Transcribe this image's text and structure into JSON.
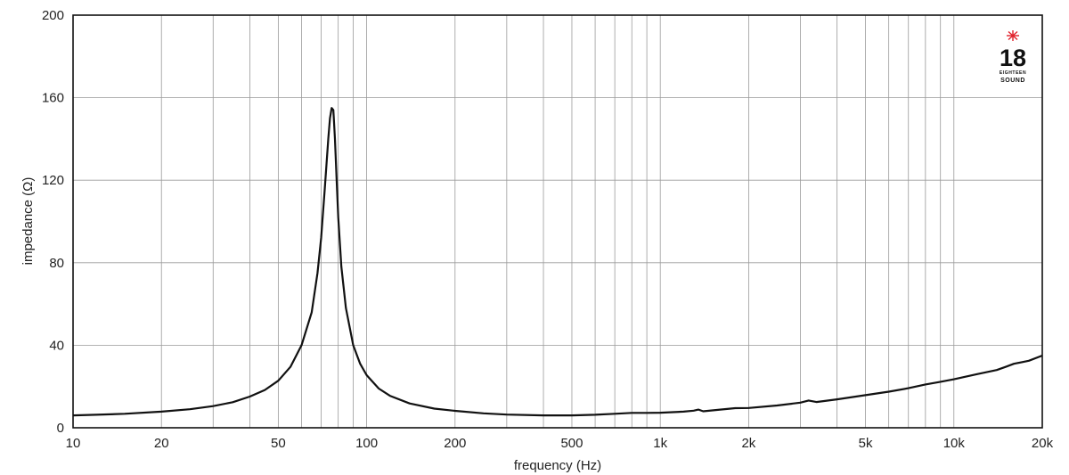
{
  "chart_data": {
    "type": "line",
    "title": "",
    "xlabel": "frequency (Hz)",
    "ylabel": "impedance (Ω)",
    "x_scale": "log",
    "xlim": [
      10,
      20000
    ],
    "ylim": [
      0,
      200
    ],
    "grid": true,
    "x_ticks": [
      {
        "value": 10,
        "label": "10"
      },
      {
        "value": 20,
        "label": "20"
      },
      {
        "value": 50,
        "label": "50"
      },
      {
        "value": 100,
        "label": "100"
      },
      {
        "value": 200,
        "label": "200"
      },
      {
        "value": 500,
        "label": "500"
      },
      {
        "value": 1000,
        "label": "1k"
      },
      {
        "value": 2000,
        "label": "2k"
      },
      {
        "value": 5000,
        "label": "5k"
      },
      {
        "value": 10000,
        "label": "10k"
      },
      {
        "value": 20000,
        "label": "20k"
      }
    ],
    "x_minor_grid": [
      30,
      40,
      60,
      70,
      80,
      90,
      300,
      400,
      600,
      700,
      800,
      900,
      3000,
      4000,
      6000,
      7000,
      8000,
      9000
    ],
    "y_ticks": [
      0,
      40,
      80,
      120,
      160,
      200
    ],
    "y_grid": [
      40,
      80,
      120,
      160
    ],
    "series": [
      {
        "color": "#111111",
        "x": [
          10,
          12,
          15,
          20,
          25,
          30,
          35,
          40,
          45,
          50,
          55,
          60,
          65,
          68,
          70,
          72,
          74,
          75,
          76,
          77,
          78,
          79,
          80,
          82,
          85,
          90,
          95,
          100,
          110,
          120,
          140,
          170,
          200,
          250,
          300,
          400,
          500,
          600,
          700,
          800,
          900,
          1000,
          1200,
          1300,
          1350,
          1400,
          1600,
          1800,
          2000,
          2500,
          3000,
          3200,
          3400,
          4000,
          5000,
          6000,
          7000,
          8000,
          9000,
          10000,
          12000,
          14000,
          15000,
          16000,
          18000,
          20000
        ],
        "y": [
          6,
          6.3,
          6.8,
          7.8,
          9,
          10.5,
          12.4,
          15.1,
          18.3,
          22.8,
          29.5,
          40,
          56,
          75,
          92,
          116,
          140,
          150,
          155,
          154,
          140,
          120,
          102,
          78,
          58,
          40,
          31,
          25.5,
          19,
          15.5,
          11.8,
          9.3,
          8.2,
          7,
          6.4,
          6,
          6,
          6.3,
          6.8,
          7.2,
          7.2,
          7.3,
          7.8,
          8.3,
          8.8,
          8,
          8.8,
          9.5,
          9.6,
          10.8,
          12.2,
          13.2,
          12.5,
          13.8,
          15.8,
          17.5,
          19.2,
          21,
          22.3,
          23.5,
          26,
          28,
          29.5,
          31,
          32.5,
          35
        ]
      }
    ]
  },
  "logo": {
    "number": "18",
    "line1": "EIGHTEEN",
    "line2": "SOUND",
    "star_color": "#e0202a"
  }
}
